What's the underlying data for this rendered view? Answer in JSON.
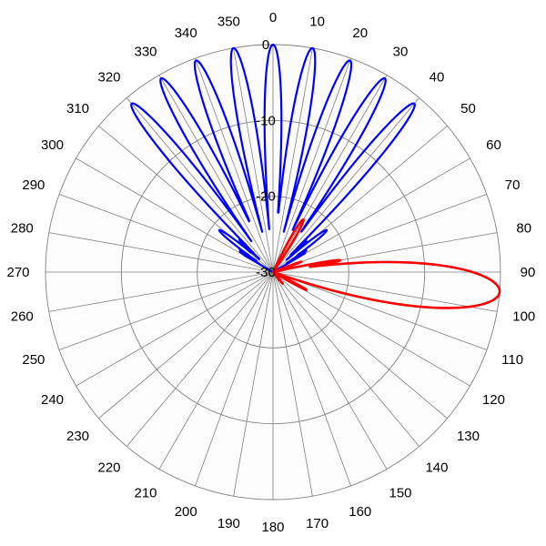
{
  "chart_data": {
    "type": "polar-line",
    "title": "",
    "theta_direction": "clockwise",
    "theta_zero": "top",
    "angle_ticks": [
      "0",
      "10",
      "20",
      "30",
      "40",
      "50",
      "60",
      "70",
      "80",
      "90",
      "100",
      "110",
      "120",
      "130",
      "140",
      "150",
      "160",
      "170",
      "180",
      "190",
      "200",
      "210",
      "220",
      "230",
      "240",
      "250",
      "260",
      "270",
      "280",
      "290",
      "300",
      "310",
      "320",
      "330",
      "340",
      "350"
    ],
    "radial_axis": {
      "min": -30,
      "max": 0,
      "rings": [
        -30,
        -20,
        -10,
        0
      ],
      "tick_labels": [
        "0",
        "-10",
        "-20",
        "-30"
      ]
    },
    "grid": true,
    "series": [
      {
        "color": "#0000ff",
        "main_lobes": [
          {
            "angle_deg": -40,
            "level_db": -1
          },
          {
            "angle_deg": -30,
            "level_db": -0.5
          },
          {
            "angle_deg": -20,
            "level_db": -0.3
          },
          {
            "angle_deg": -10,
            "level_db": 0
          },
          {
            "angle_deg": 0,
            "level_db": 0
          },
          {
            "angle_deg": 10,
            "level_db": 0
          },
          {
            "angle_deg": 20,
            "level_db": -0.3
          },
          {
            "angle_deg": 30,
            "level_db": -0.5
          },
          {
            "angle_deg": 40,
            "level_db": -1
          }
        ],
        "outer_lobes": [
          {
            "angle_deg": -52,
            "level_db": -21
          },
          {
            "angle_deg": 52,
            "level_db": -21
          }
        ],
        "lobe_half_width_deg": 3.5,
        "sidelobe_floor_db": -24
      },
      {
        "color": "#ff0000",
        "lobes": [
          {
            "angle_deg": 95,
            "level_db": 0,
            "half_width_deg": 9
          },
          {
            "angle_deg": 105,
            "level_db": -20,
            "half_width_deg": 3
          },
          {
            "angle_deg": 80,
            "level_db": -21,
            "half_width_deg": 3
          },
          {
            "angle_deg": 70,
            "level_db": -26,
            "half_width_deg": 3
          },
          {
            "angle_deg": 30,
            "level_db": -22,
            "half_width_deg": 6
          },
          {
            "angle_deg": 118,
            "level_db": -25,
            "half_width_deg": 4
          },
          {
            "angle_deg": 140,
            "level_db": -28,
            "half_width_deg": 4
          }
        ]
      }
    ]
  }
}
